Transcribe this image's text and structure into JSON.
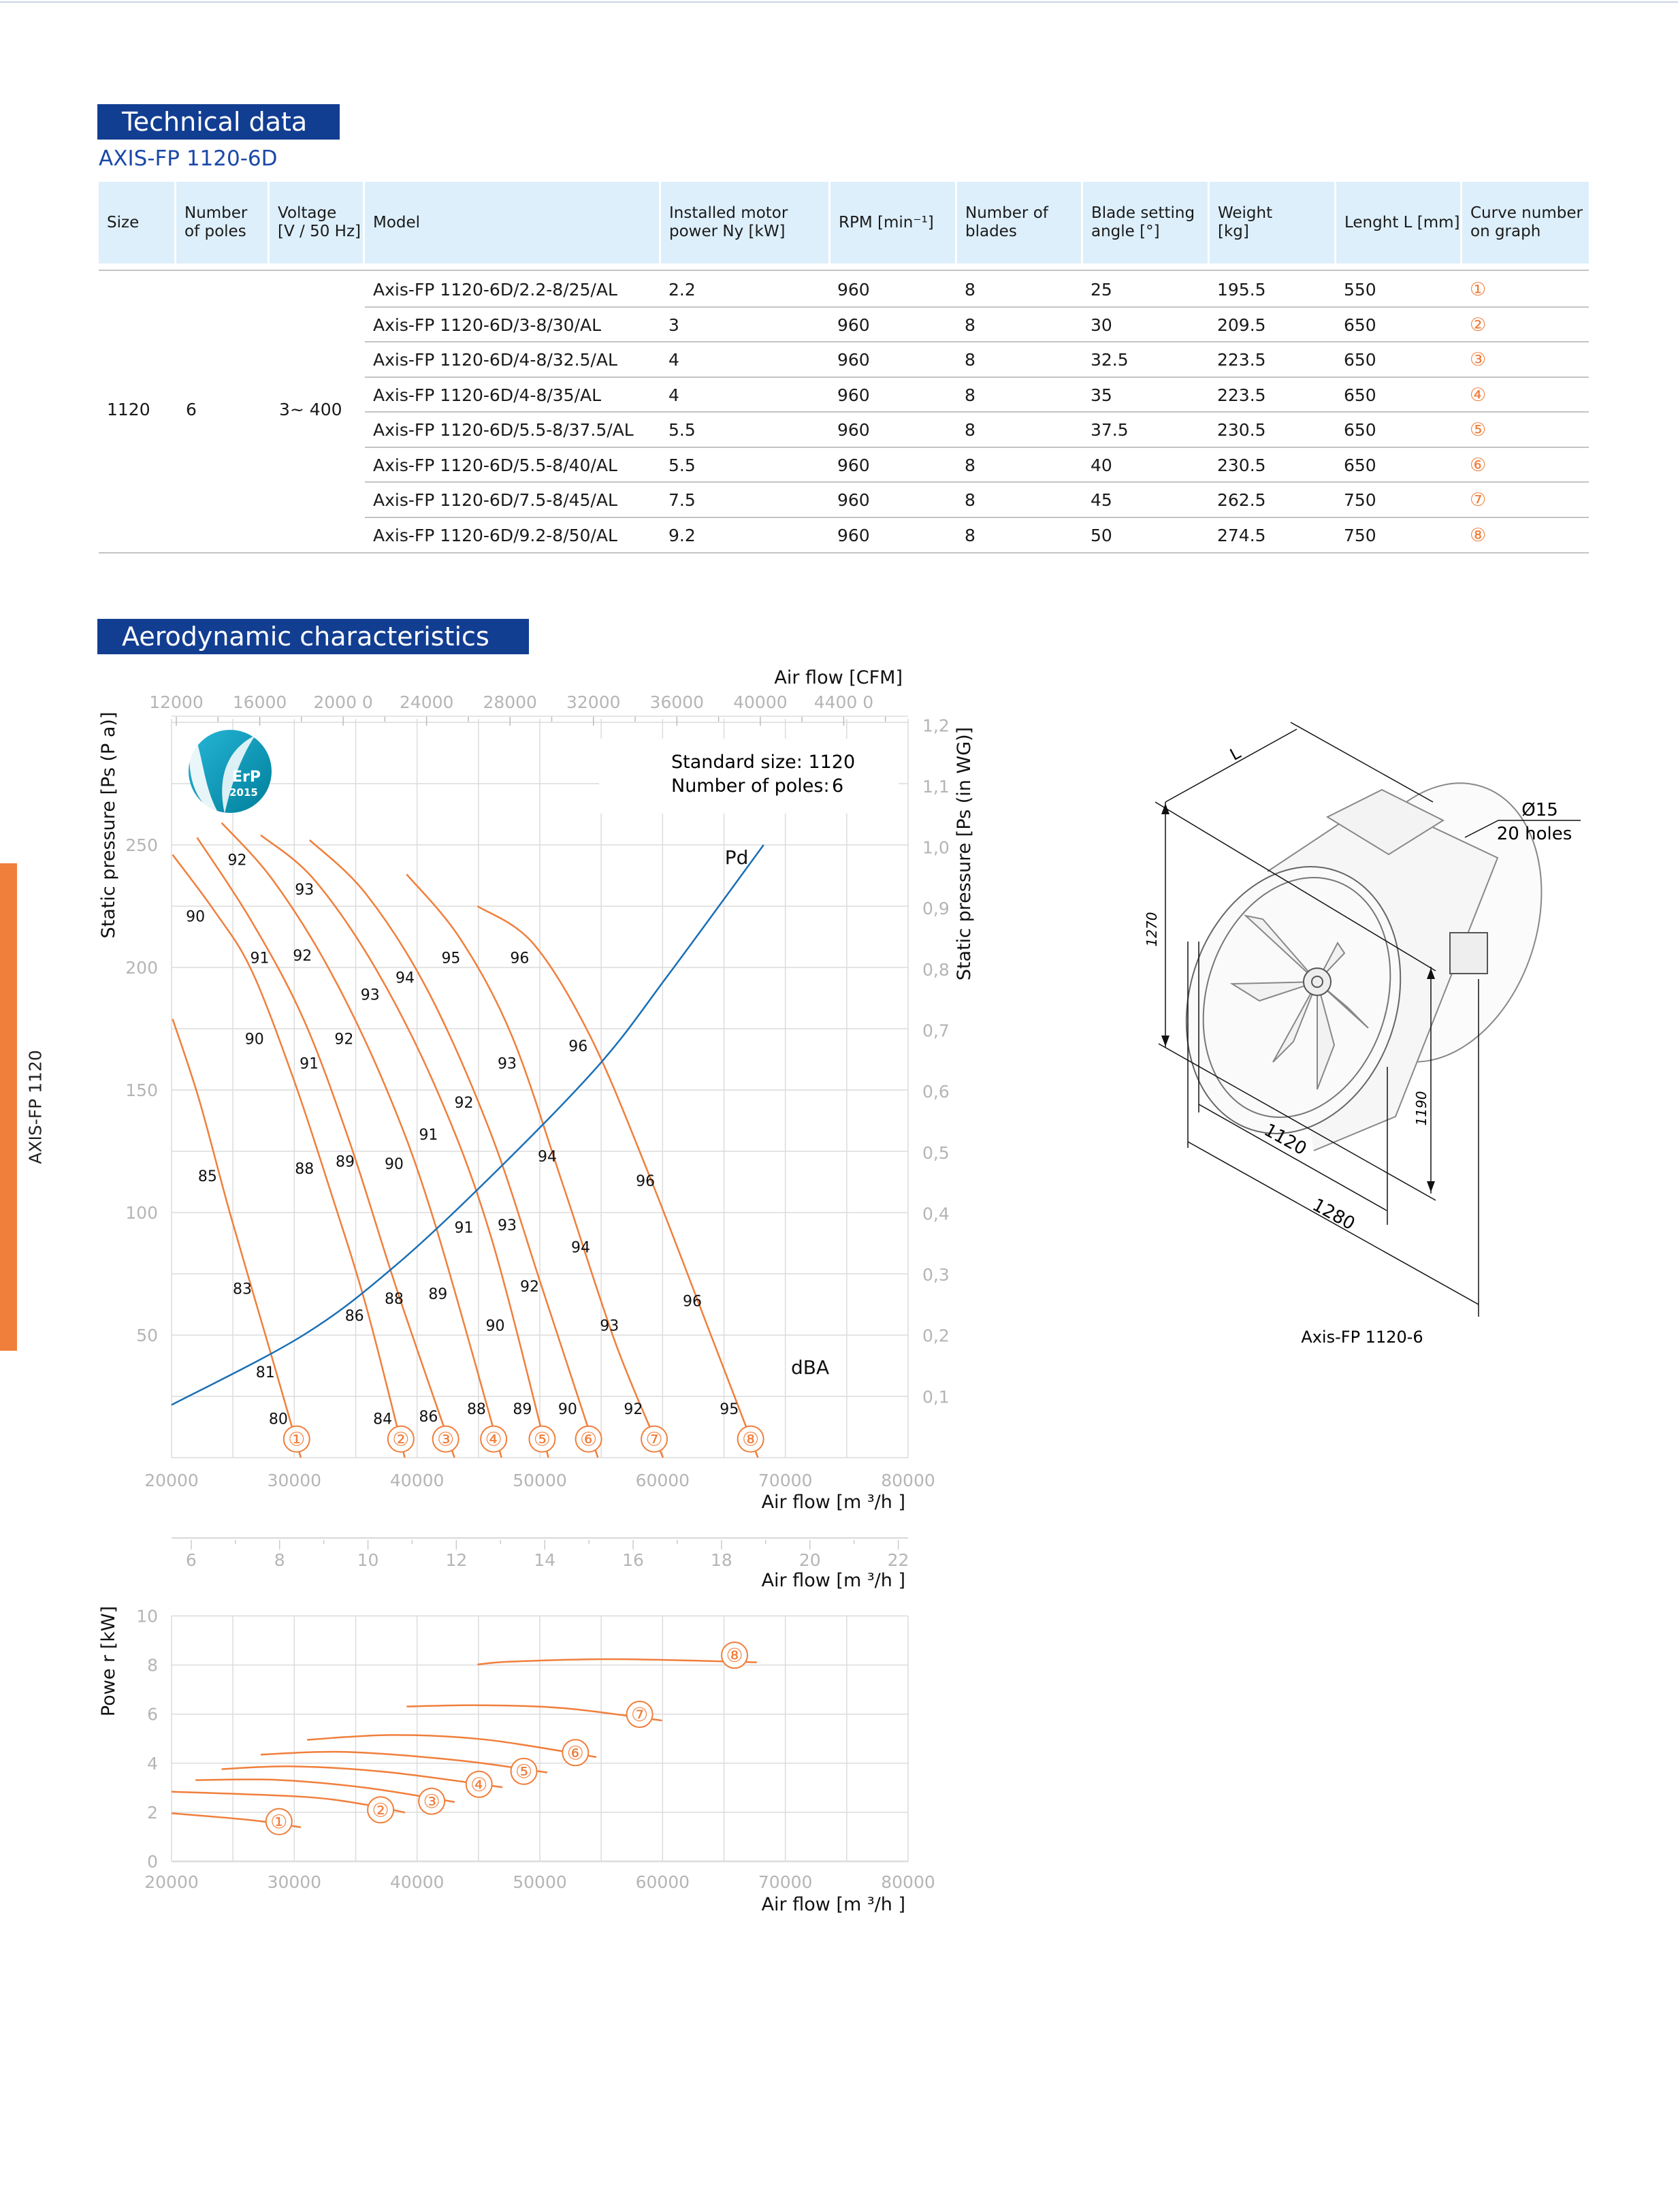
{
  "side_tab": "AXIS-FP 1120",
  "technical": {
    "section_title": "Technical data",
    "model_family": "AXIS-FP 1120-6D",
    "columns": [
      "Size",
      "Number\nof poles",
      "Voltage\n[V / 50 Hz]",
      "Model",
      "Installed motor\npower Ny [kW]",
      "RPM [min⁻¹]",
      "Number of\nblades",
      "Blade setting\nangle [°]",
      "Weight\n[kg]",
      "Lenght L [mm]",
      "Curve number\non graph"
    ],
    "group": {
      "size": "1120",
      "poles": "6",
      "voltage": "3~ 400"
    },
    "rows": [
      {
        "model": "Axis-FP 1120-6D/2.2-8/25/AL",
        "power": "2.2",
        "rpm": "960",
        "blades": "8",
        "angle": "25",
        "weight": "195.5",
        "length": "550",
        "curve": "①"
      },
      {
        "model": "Axis-FP 1120-6D/3-8/30/AL",
        "power": "3",
        "rpm": "960",
        "blades": "8",
        "angle": "30",
        "weight": "209.5",
        "length": "650",
        "curve": "②"
      },
      {
        "model": "Axis-FP 1120-6D/4-8/32.5/AL",
        "power": "4",
        "rpm": "960",
        "blades": "8",
        "angle": "32.5",
        "weight": "223.5",
        "length": "650",
        "curve": "③"
      },
      {
        "model": "Axis-FP 1120-6D/4-8/35/AL",
        "power": "4",
        "rpm": "960",
        "blades": "8",
        "angle": "35",
        "weight": "223.5",
        "length": "650",
        "curve": "④"
      },
      {
        "model": "Axis-FP 1120-6D/5.5-8/37.5/AL",
        "power": "5.5",
        "rpm": "960",
        "blades": "8",
        "angle": "37.5",
        "weight": "230.5",
        "length": "650",
        "curve": "⑤"
      },
      {
        "model": "Axis-FP 1120-6D/5.5-8/40/AL",
        "power": "5.5",
        "rpm": "960",
        "blades": "8",
        "angle": "40",
        "weight": "230.5",
        "length": "650",
        "curve": "⑥"
      },
      {
        "model": "Axis-FP 1120-6D/7.5-8/45/AL",
        "power": "7.5",
        "rpm": "960",
        "blades": "8",
        "angle": "45",
        "weight": "262.5",
        "length": "750",
        "curve": "⑦"
      },
      {
        "model": "Axis-FP 1120-6D/9.2-8/50/AL",
        "power": "9.2",
        "rpm": "960",
        "blades": "8",
        "angle": "50",
        "weight": "274.5",
        "length": "750",
        "curve": "⑧"
      }
    ]
  },
  "aero": {
    "section_title": "Aerodynamic characteristics",
    "standard_size": "Standard size: 1120",
    "poles_label": "Number of poles:",
    "poles_value": "6",
    "erp_text": "ErP",
    "erp_year": "2015"
  },
  "drawing": {
    "caption": "Axis-FP 1120-6",
    "dim_L": "L",
    "dim_1270": "1270",
    "dim_1190": "1190",
    "dim_1120": "1120",
    "dim_1280": "1280",
    "hole_dia": "Ø15",
    "hole_count": "20 holes"
  },
  "colors": {
    "brand_blue": "#123e92",
    "accent_orange": "#f07f3c",
    "header_bg": "#ddeffb",
    "pd_blue": "#1a6fb5",
    "grid": "#dcdcdc"
  },
  "chart_data": [
    {
      "type": "line",
      "title": "Static pressure vs air flow",
      "xlabel": "Air flow [m ³/h ]",
      "ylabel": "Static pressure [Ps (P    a)]",
      "x2label": "Air flow [CFM]",
      "y2label": "Static pressure [Ps (in WG)]",
      "xlim": [
        20000,
        80000
      ],
      "ylim": [
        0,
        300
      ],
      "xticks": [
        "20000",
        "30000",
        "40000",
        "50000",
        "60000",
        "70000",
        "80000"
      ],
      "yticks": [
        "50",
        "100",
        "150",
        "200",
        "250"
      ],
      "x2ticks": [
        "12000",
        "16000",
        "2000 0",
        "24000",
        "28000",
        "32000",
        "36000",
        "40000",
        "4400 0"
      ],
      "y2ticks": [
        "0,1",
        "0,2",
        "0,3",
        "0,4",
        "0,5",
        "0,6",
        "0,7",
        "0,8",
        "0,9",
        "1,0",
        "1,1",
        "1,2"
      ],
      "grid": true,
      "series": [
        {
          "name": "1",
          "points": [
            [
              20085,
              179
            ],
            [
              22250,
              146
            ],
            [
              24800,
              99
            ],
            [
              28000,
              44
            ],
            [
              30530,
              0
            ]
          ]
        },
        {
          "name": "2",
          "points": [
            [
              20085,
              246
            ],
            [
              23500,
              223
            ],
            [
              26500,
              199
            ],
            [
              29900,
              155
            ],
            [
              32870,
              110
            ],
            [
              35840,
              62
            ],
            [
              39000,
              0
            ]
          ]
        },
        {
          "name": "3",
          "points": [
            [
              22080,
              253
            ],
            [
              26500,
              219
            ],
            [
              30740,
              179
            ],
            [
              34560,
              128
            ],
            [
              38390,
              68
            ],
            [
              43050,
              0
            ]
          ]
        },
        {
          "name": "4",
          "points": [
            [
              24080,
              259
            ],
            [
              28200,
              236
            ],
            [
              32870,
              199
            ],
            [
              37540,
              150
            ],
            [
              41360,
              97
            ],
            [
              46880,
              0
            ]
          ]
        },
        {
          "name": "5",
          "points": [
            [
              27260,
              254
            ],
            [
              31590,
              236
            ],
            [
              36690,
              199
            ],
            [
              41780,
              148
            ],
            [
              46030,
              90
            ],
            [
              50700,
              0
            ]
          ]
        },
        {
          "name": "6",
          "points": [
            [
              31250,
              252
            ],
            [
              35840,
              230
            ],
            [
              40930,
              190
            ],
            [
              46030,
              132
            ],
            [
              50270,
              68
            ],
            [
              54730,
              0
            ]
          ]
        },
        {
          "name": "7",
          "points": [
            [
              39150,
              238
            ],
            [
              43480,
              212
            ],
            [
              47730,
              172
            ],
            [
              51970,
              110
            ],
            [
              56220,
              46
            ],
            [
              60040,
              0
            ]
          ]
        },
        {
          "name": "8",
          "points": [
            [
              44920,
              225
            ],
            [
              49420,
              210
            ],
            [
              54100,
              172
            ],
            [
              58770,
              117
            ],
            [
              63860,
              51
            ],
            [
              67770,
              0
            ]
          ]
        }
      ],
      "pd_curve": {
        "name": "Pd",
        "points": [
          [
            20000,
            21.5
          ],
          [
            30740,
            50
          ],
          [
            38390,
            79
          ],
          [
            46880,
            119
          ],
          [
            54950,
            161
          ],
          [
            60470,
            197
          ],
          [
            68230,
            250
          ]
        ]
      },
      "curve_markers": [
        [
          "①",
          30190
        ],
        [
          "②",
          38680
        ],
        [
          "③",
          42330
        ],
        [
          "④",
          46240
        ],
        [
          "⑤",
          50190
        ],
        [
          "⑥",
          53970
        ],
        [
          "⑦",
          59320
        ],
        [
          "⑧",
          67170
        ]
      ],
      "dba_unit": "dBA",
      "dba_labels": [
        [
          "92",
          25350,
          244
        ],
        [
          "90",
          21950,
          221
        ],
        [
          "93",
          30830,
          232
        ],
        [
          "91",
          27180,
          204
        ],
        [
          "92",
          30660,
          205
        ],
        [
          "95",
          42760,
          204
        ],
        [
          "96",
          48360,
          204
        ],
        [
          "94",
          39020,
          196
        ],
        [
          "93",
          36180,
          189
        ],
        [
          "90",
          26750,
          171
        ],
        [
          "92",
          34050,
          171
        ],
        [
          "91",
          31210,
          161
        ],
        [
          "96",
          53120,
          168
        ],
        [
          "93",
          47340,
          161
        ],
        [
          "92",
          43820,
          145
        ],
        [
          "91",
          40930,
          132
        ],
        [
          "85",
          22930,
          115
        ],
        [
          "88",
          30830,
          118
        ],
        [
          "89",
          34140,
          121
        ],
        [
          "90",
          38130,
          120
        ],
        [
          "94",
          50610,
          123
        ],
        [
          "96",
          58600,
          113
        ],
        [
          "91",
          43820,
          94
        ],
        [
          "93",
          47340,
          95
        ],
        [
          "94",
          53330,
          86
        ],
        [
          "83",
          25770,
          69
        ],
        [
          "88",
          38130,
          65
        ],
        [
          "89",
          41700,
          67
        ],
        [
          "92",
          49170,
          70
        ],
        [
          "96",
          62420,
          64
        ],
        [
          "86",
          34900,
          58
        ],
        [
          "90",
          46370,
          54
        ],
        [
          "93",
          55670,
          54
        ],
        [
          "81",
          27640,
          35
        ],
        [
          "80",
          28700,
          16
        ],
        [
          "84",
          37200,
          16
        ],
        [
          "86",
          40930,
          17
        ],
        [
          "88",
          44840,
          20
        ],
        [
          "89",
          48580,
          20
        ],
        [
          "90",
          52270,
          20
        ],
        [
          "92",
          57620,
          20
        ],
        [
          "95",
          65430,
          20
        ]
      ]
    },
    {
      "type": "line",
      "title": "Power vs air flow",
      "xlabel": "Air flow [m ³/h ]",
      "ylabel": "Powe r [kW]",
      "aux_axis": {
        "label": "Air flow [m ³/h ]",
        "ticks": [
          "6",
          "8",
          "10",
          "12",
          "14",
          "16",
          "18",
          "20",
          "22"
        ],
        "range": [
          6,
          22
        ]
      },
      "xlim": [
        20000,
        80000
      ],
      "ylim": [
        0,
        10
      ],
      "xticks": [
        "20000",
        "30000",
        "40000",
        "50000",
        "60000",
        "70000",
        "80000"
      ],
      "yticks": [
        "0",
        "2",
        "4",
        "6",
        "8",
        "10"
      ],
      "grid": true,
      "series": [
        {
          "name": "①",
          "points": [
            [
              20000,
              1.96
            ],
            [
              26500,
              1.68
            ],
            [
              30530,
              1.39
            ]
          ],
          "marker": [
            28750,
            1.62
          ]
        },
        {
          "name": "②",
          "points": [
            [
              20000,
              2.84
            ],
            [
              30740,
              2.63
            ],
            [
              35840,
              2.31
            ],
            [
              39020,
              1.99
            ]
          ],
          "marker": [
            37030,
            2.1
          ]
        },
        {
          "name": "③",
          "points": [
            [
              21950,
              3.31
            ],
            [
              28620,
              3.32
            ],
            [
              35840,
              3.0
            ],
            [
              43060,
              2.42
            ]
          ],
          "marker": [
            41190,
            2.45
          ]
        },
        {
          "name": "④",
          "points": [
            [
              24080,
              3.76
            ],
            [
              29900,
              3.87
            ],
            [
              37540,
              3.64
            ],
            [
              46960,
              3.02
            ]
          ],
          "marker": [
            45050,
            3.14
          ]
        },
        {
          "name": "⑤",
          "points": [
            [
              27260,
              4.35
            ],
            [
              34140,
              4.46
            ],
            [
              43480,
              4.11
            ],
            [
              50610,
              3.62
            ]
          ],
          "marker": [
            48700,
            3.67
          ]
        },
        {
          "name": "⑥",
          "points": [
            [
              31040,
              4.95
            ],
            [
              37960,
              5.15
            ],
            [
              45600,
              4.96
            ],
            [
              54600,
              4.25
            ]
          ],
          "marker": [
            52900,
            4.43
          ]
        },
        {
          "name": "⑦",
          "points": [
            [
              39150,
              6.31
            ],
            [
              45180,
              6.36
            ],
            [
              51970,
              6.24
            ],
            [
              59950,
              5.74
            ]
          ],
          "marker": [
            58130,
            5.99
          ]
        },
        {
          "name": "⑧",
          "points": [
            [
              44920,
              8.02
            ],
            [
              47730,
              8.14
            ],
            [
              56220,
              8.24
            ],
            [
              67680,
              8.11
            ]
          ],
          "marker": [
            65860,
            8.4
          ]
        }
      ]
    }
  ]
}
